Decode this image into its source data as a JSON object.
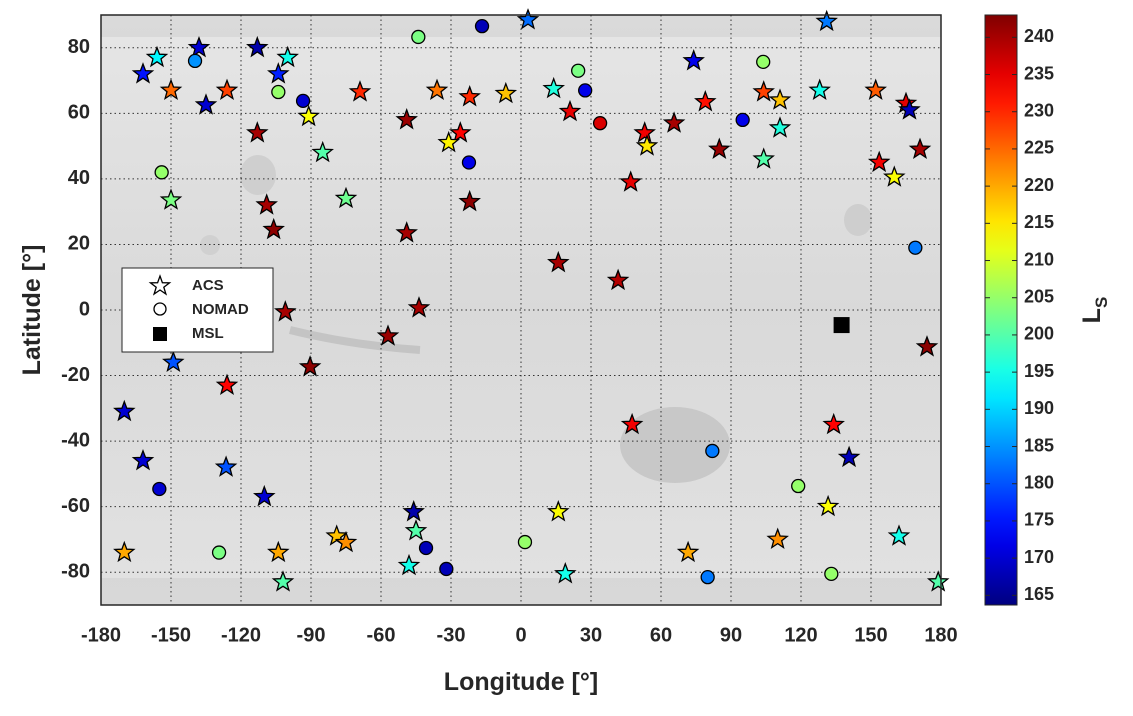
{
  "chart_data": {
    "type": "scatter",
    "x_label": "Longitude [°]",
    "y_label": "Latitude [°]",
    "colorbar_label": {
      "text": "L",
      "subscript": "S"
    },
    "xlim": [
      -180,
      180
    ],
    "xticks": [
      -180,
      -150,
      -120,
      -90,
      -60,
      -30,
      0,
      30,
      60,
      90,
      120,
      150,
      180
    ],
    "ylim": [
      -90,
      90
    ],
    "yticks": [
      -80,
      -60,
      -40,
      -20,
      0,
      20,
      40,
      60,
      80
    ],
    "grid": true,
    "colormap": "jet",
    "clim": [
      163.7,
      243
    ],
    "cticks": [
      165,
      170,
      175,
      180,
      185,
      190,
      195,
      200,
      205,
      210,
      215,
      220,
      225,
      230,
      235,
      240
    ],
    "legend_position": "left",
    "series": [
      {
        "name": "ACS",
        "marker": "star",
        "x": [
          -156,
          -138,
          -113,
          -100,
          -162,
          -150,
          -135,
          -126,
          -104,
          -113,
          -91,
          -85,
          -69,
          -36,
          -22,
          -6.5,
          -49,
          -26,
          -31,
          3,
          14,
          21,
          53,
          54,
          65.6,
          74,
          79,
          85,
          47,
          104,
          111,
          111,
          104,
          128,
          131,
          152,
          153.5,
          165,
          166.5,
          160,
          171,
          -150,
          -109,
          -106,
          -75,
          -49,
          -22,
          16,
          41.6,
          -101,
          -43.7,
          -57,
          -90.4,
          -149,
          -126,
          -170,
          -162,
          -126.4,
          -110,
          -46,
          -45,
          -48,
          -79,
          -75,
          -104,
          -170,
          -102,
          16,
          19,
          47.6,
          71.6,
          110,
          131.6,
          134,
          140.6,
          162,
          174,
          178.8
        ],
        "values": [
          77,
          80,
          80,
          77,
          72,
          67,
          62.5,
          67,
          72,
          54,
          59,
          48,
          66.5,
          67,
          65,
          66,
          58,
          54,
          51,
          88.5,
          67.5,
          60.5,
          54,
          50,
          57,
          76,
          63.5,
          49,
          39,
          66.5,
          64,
          55.5,
          46,
          67,
          88,
          67,
          45,
          63,
          61,
          40.5,
          49,
          33.5,
          32,
          24.5,
          34,
          23.5,
          33,
          14.4,
          9,
          -0.6,
          0.6,
          -8,
          -17.4,
          -16,
          -23,
          -31,
          -46,
          -48,
          -57,
          -61.6,
          -67.4,
          -78,
          -69,
          -71,
          -74,
          -74,
          -83,
          -61.6,
          -80.5,
          -35,
          -74,
          -70,
          -60,
          -35,
          -45,
          -69,
          -11.3,
          -83
        ],
        "ls": [
          193,
          170,
          167,
          195,
          175,
          225,
          170,
          228,
          176,
          240,
          213,
          200,
          230,
          224,
          230,
          218,
          241,
          233,
          214,
          182,
          196,
          235,
          234,
          215,
          240,
          172,
          232,
          241,
          235,
          228,
          218,
          196,
          200,
          195,
          183,
          226,
          234,
          235,
          168,
          213,
          240,
          203,
          240,
          242,
          202,
          240,
          242,
          240,
          239,
          240,
          240,
          241,
          242,
          180,
          233,
          170,
          170,
          180,
          170,
          167,
          200,
          195,
          218,
          222,
          220,
          220,
          200,
          213,
          195,
          234,
          220,
          222,
          213,
          233,
          168,
          195,
          242,
          200
        ]
      },
      {
        "name": "NOMAD",
        "marker": "circle",
        "x": [
          -16.7,
          -44,
          -139.7,
          -104,
          -93.4,
          24.5,
          27.5,
          33.9,
          -22.3,
          -154,
          95,
          103.8,
          169,
          82,
          -155,
          -129.4,
          -40.7,
          -32,
          1.7,
          80,
          118.8,
          133
        ],
        "values": [
          86.6,
          83.3,
          76,
          66.5,
          63.8,
          73,
          67,
          57,
          45,
          42,
          58,
          75.7,
          19,
          -43,
          -54.6,
          -74,
          -72.6,
          -79,
          -70.8,
          -81.5,
          -53.7,
          -80.5
        ],
        "ls": [
          168,
          203,
          185,
          205,
          170,
          203,
          172,
          236,
          172,
          205,
          172,
          205,
          183,
          183,
          170,
          203,
          168,
          168,
          205,
          183,
          205,
          205
        ]
      },
      {
        "name": "MSL",
        "marker": "square",
        "color": "#000000",
        "x": [
          137.4
        ],
        "values": [
          -4.6
        ]
      }
    ]
  }
}
